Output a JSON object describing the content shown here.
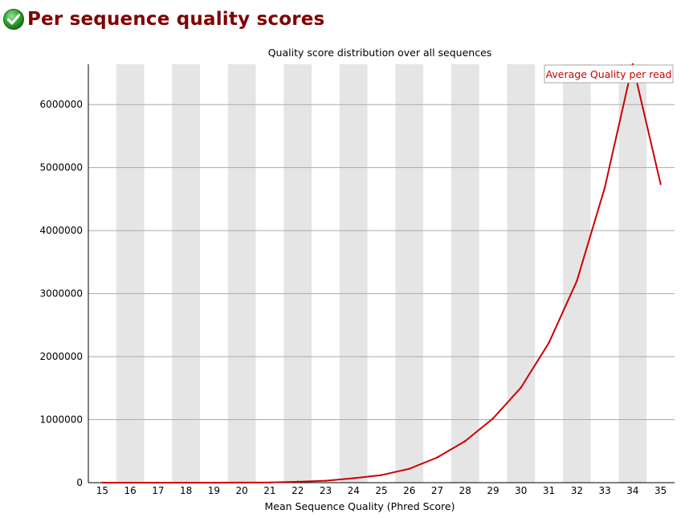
{
  "header": {
    "title": "Per sequence quality scores",
    "status_icon": "pass-check-icon",
    "status_color": "#2e9e2e"
  },
  "colors": {
    "title": "#800000",
    "line": "#cc0000",
    "band": "#e5e5e5",
    "grid": "#aaaaaa",
    "axis": "#000000"
  },
  "chart_data": {
    "type": "line",
    "title": "Quality score distribution over all sequences",
    "xlabel": "Mean Sequence Quality (Phred Score)",
    "ylabel": "",
    "x": [
      15,
      16,
      17,
      18,
      19,
      20,
      21,
      22,
      23,
      24,
      25,
      26,
      27,
      28,
      29,
      30,
      31,
      32,
      33,
      34,
      35
    ],
    "x_tick_labels": [
      "15",
      "16",
      "17",
      "18",
      "19",
      "20",
      "21",
      "22",
      "23",
      "24",
      "25",
      "26",
      "27",
      "28",
      "29",
      "30",
      "31",
      "32",
      "33",
      "34",
      "35"
    ],
    "y_ticks": [
      0,
      1000000,
      2000000,
      3000000,
      4000000,
      5000000,
      6000000
    ],
    "y_tick_labels": [
      "0",
      "1000000",
      "2000000",
      "3000000",
      "4000000",
      "5000000",
      "6000000"
    ],
    "ylim": [
      0,
      6640000
    ],
    "xlim": [
      14.5,
      35.5
    ],
    "grid": true,
    "alternating_bands": true,
    "legend_position": "top-right",
    "series": [
      {
        "name": "Average Quality per read",
        "color": "#cc0000",
        "values": [
          0,
          0,
          0,
          0,
          0,
          1000,
          3000,
          15000,
          30000,
          70000,
          120000,
          220000,
          400000,
          660000,
          1020000,
          1510000,
          2220000,
          3200000,
          4680000,
          6640000,
          4740000
        ]
      }
    ]
  }
}
